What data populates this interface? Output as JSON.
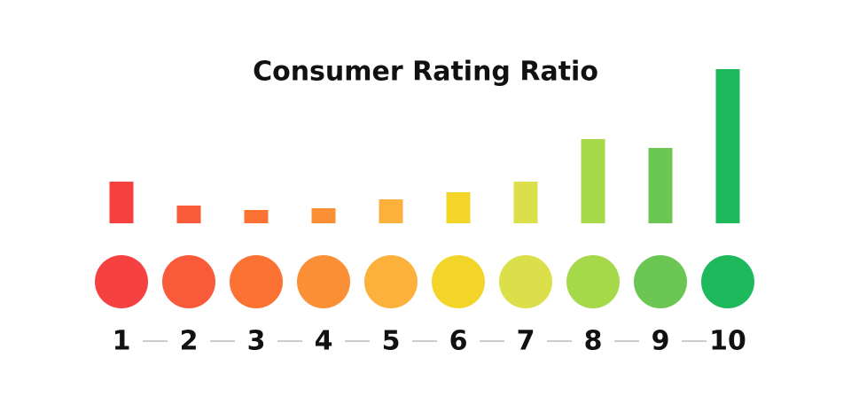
{
  "chart_data": {
    "type": "bar",
    "title": "Consumer Rating Ratio",
    "categories": [
      "1",
      "2",
      "3",
      "4",
      "5",
      "6",
      "7",
      "8",
      "9",
      "10"
    ],
    "values": [
      47,
      20,
      15,
      17,
      27,
      35,
      47,
      95,
      85,
      174
    ],
    "colors": [
      "#f5413f",
      "#f85a3a",
      "#fb7233",
      "#fb8f35",
      "#fcb13d",
      "#f3d52a",
      "#dbe04a",
      "#a5d94a",
      "#6cc653",
      "#1db95c"
    ],
    "ylim": [
      0,
      180
    ]
  }
}
